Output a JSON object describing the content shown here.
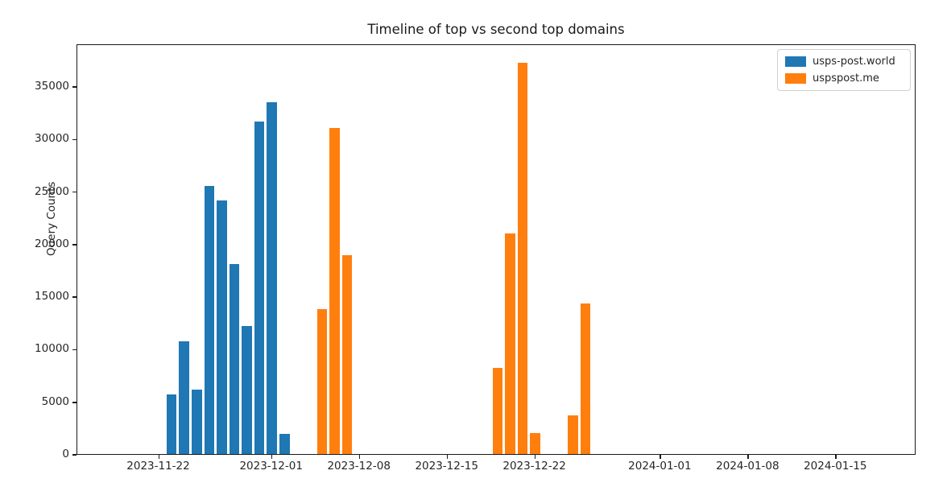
{
  "figure": {
    "background": "#ffffff",
    "text_color": "#1a1a1a"
  },
  "chart_data": {
    "type": "bar",
    "title": "Timeline of top vs second top domains",
    "xlabel": "",
    "ylabel": "Query Counts",
    "grid": false,
    "legend_position": "upper right",
    "bar_width_days": 0.8,
    "x_ticks": [
      "2023-11-22",
      "2023-12-01",
      "2023-12-08",
      "2023-12-15",
      "2023-12-22",
      "2024-01-01",
      "2024-01-08",
      "2024-01-15"
    ],
    "y_ticks": [
      0,
      5000,
      10000,
      15000,
      20000,
      25000,
      30000,
      35000
    ],
    "ylim": [
      0,
      39060
    ],
    "xlim_days_from_first_tick": [
      -6.52,
      60.4
    ],
    "series": [
      {
        "name": "usps-post.world",
        "color": "#1f77b4",
        "points": [
          [
            "2023-11-23",
            5700
          ],
          [
            "2023-11-24",
            10700
          ],
          [
            "2023-11-25",
            6100
          ],
          [
            "2023-11-26",
            25500
          ],
          [
            "2023-11-27",
            24100
          ],
          [
            "2023-11-28",
            18100
          ],
          [
            "2023-11-29",
            12200
          ],
          [
            "2023-11-30",
            31600
          ],
          [
            "2023-12-01",
            33500
          ],
          [
            "2023-12-02",
            1900
          ]
        ]
      },
      {
        "name": "uspspost.me",
        "color": "#ff7f0e",
        "points": [
          [
            "2023-12-05",
            13800
          ],
          [
            "2023-12-06",
            31000
          ],
          [
            "2023-12-07",
            18900
          ],
          [
            "2023-12-19",
            8200
          ],
          [
            "2023-12-20",
            21000
          ],
          [
            "2023-12-21",
            37200
          ],
          [
            "2023-12-22",
            2000
          ],
          [
            "2023-12-25",
            3700
          ],
          [
            "2023-12-26",
            14300
          ]
        ]
      }
    ]
  }
}
